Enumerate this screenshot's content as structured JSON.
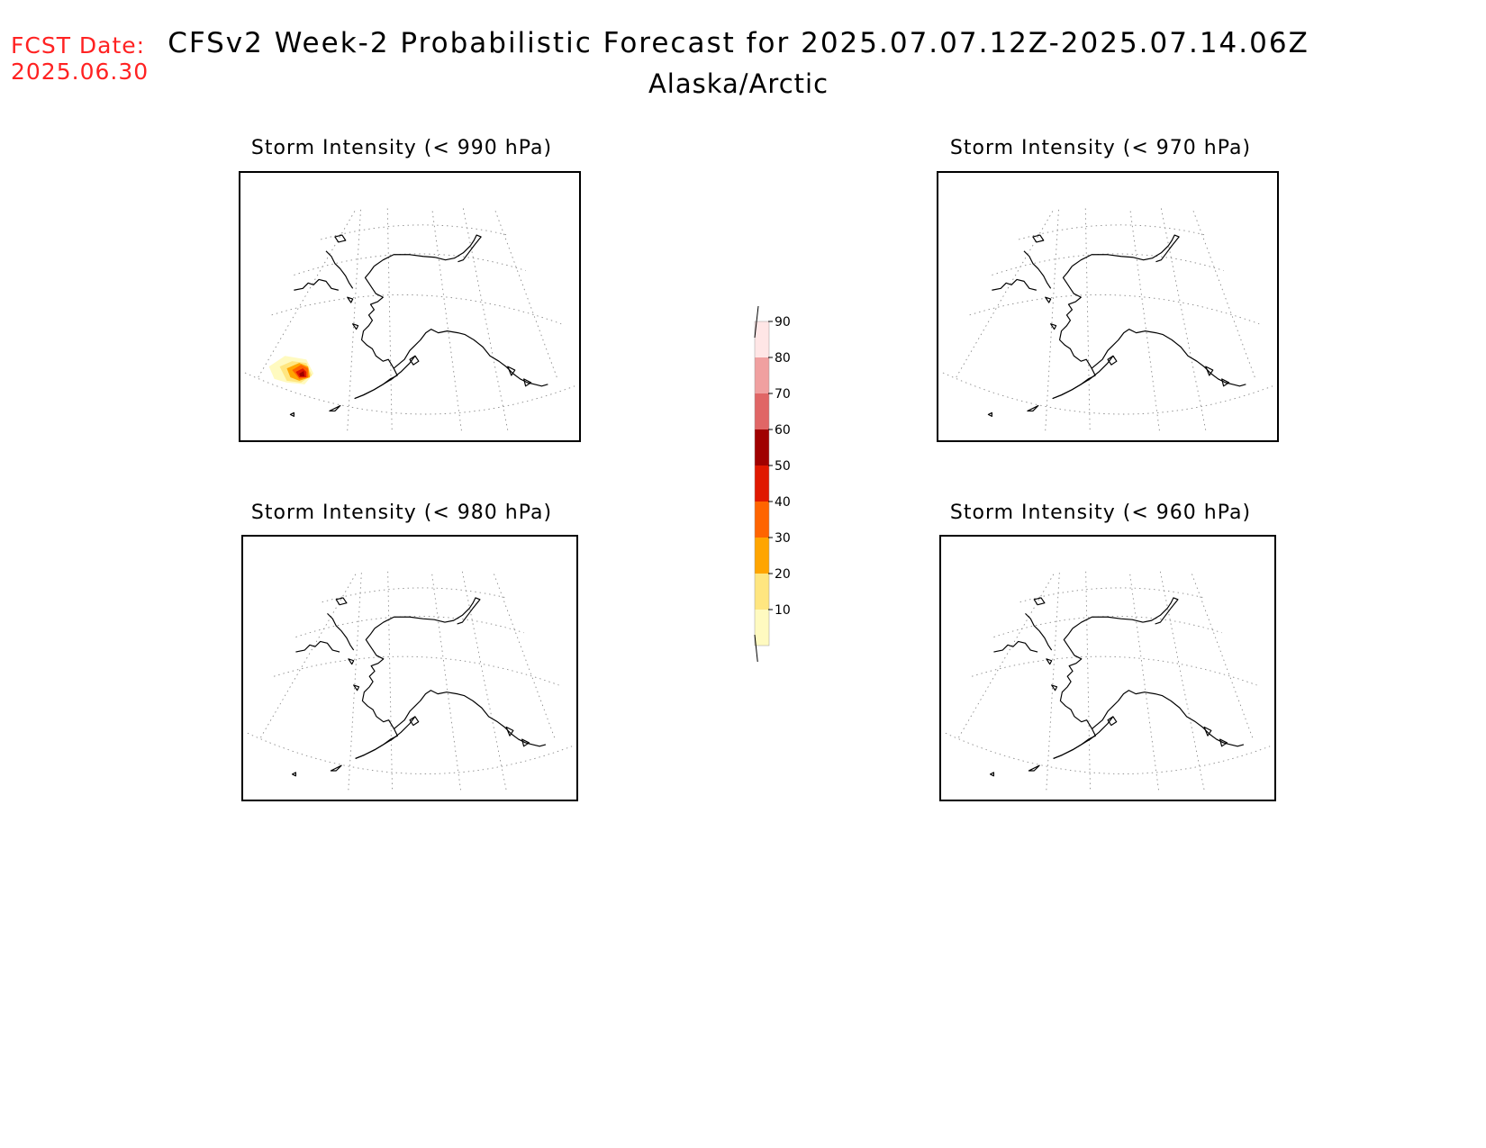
{
  "header": {
    "fcst_label_line1": "FCST Date:",
    "fcst_label_line2": "2025.06.30",
    "title": "CFSv2 Week-2 Probabilistic Forecast for 2025.07.07.12Z-2025.07.14.06Z",
    "subtitle": "Alaska/Arctic"
  },
  "panels": [
    {
      "title": "Storm Intensity (< 990 hPa)",
      "has_probability_blob": true
    },
    {
      "title": "Storm Intensity (< 970 hPa)",
      "has_probability_blob": false
    },
    {
      "title": "Storm Intensity (< 980 hPa)",
      "has_probability_blob": false
    },
    {
      "title": "Storm Intensity (< 960 hPa)",
      "has_probability_blob": false
    }
  ],
  "colorbar": {
    "ticks": [
      "10",
      "20",
      "30",
      "40",
      "50",
      "60",
      "70",
      "80",
      "90"
    ],
    "colors": [
      "#fffac0",
      "#ffe680",
      "#ffa500",
      "#ff6400",
      "#e01800",
      "#a00000",
      "#e06666",
      "#f0a0a0",
      "#ffe6e6"
    ]
  }
}
